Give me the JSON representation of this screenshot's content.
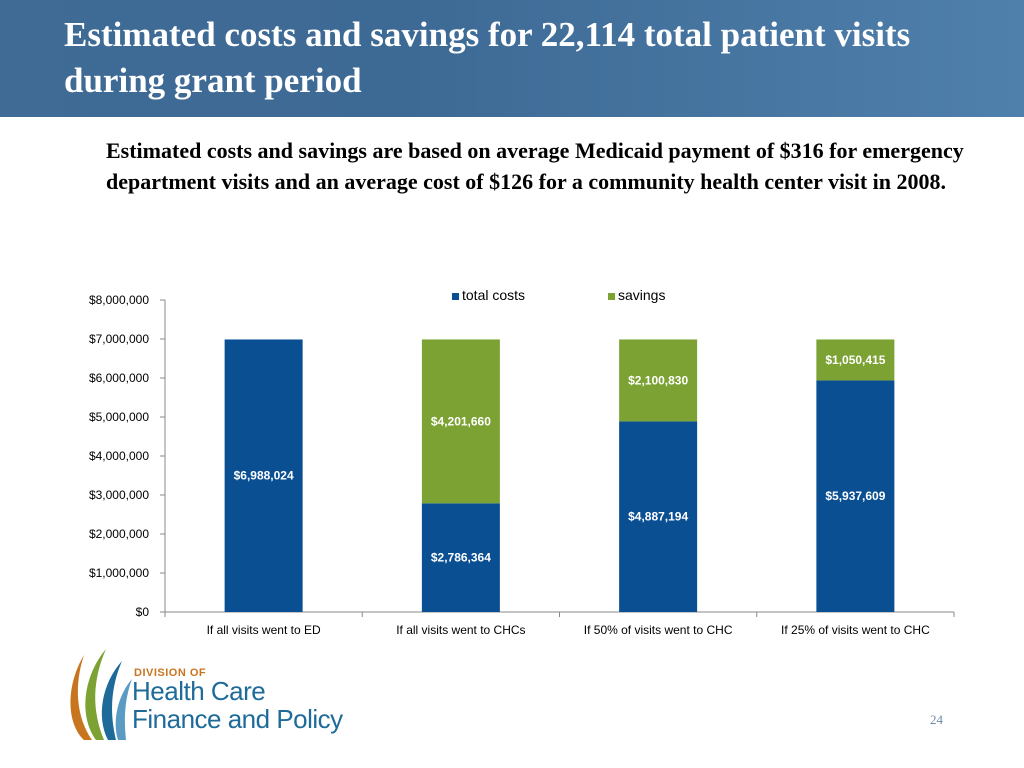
{
  "slide": {
    "title": "Estimated costs and savings for 22,114 total patient visits during grant period",
    "subtitle": "Estimated costs and savings are based on average Medicaid payment of $316 for emergency department visits and an average cost of $126 for a community health center visit in 2008.",
    "page_number": "24"
  },
  "logo": {
    "line_small": "DIVISION OF",
    "line1": "Health Care",
    "line2": "Finance and Policy"
  },
  "colors": {
    "header": "#3f6b95",
    "total_costs": "#0b4f93",
    "savings": "#7ba232",
    "logo_blue": "#1e6b9a",
    "logo_orange": "#c8751f",
    "logo_green": "#7ba232"
  },
  "chart_data": {
    "type": "bar",
    "stacked": true,
    "categories": [
      "If all visits went to ED",
      "If all visits went to CHCs",
      "If 50% of visits went to CHC",
      "If 25% of visits went to CHC"
    ],
    "series": [
      {
        "name": "total costs",
        "values": [
          6988024,
          2786364,
          4887194,
          5937609
        ],
        "labels": [
          "$6,988,024",
          "$2,786,364",
          "$4,887,194",
          "$5,937,609"
        ]
      },
      {
        "name": "savings",
        "values": [
          0,
          4201660,
          2100830,
          1050415
        ],
        "labels": [
          "",
          "$4,201,660",
          "$2,100,830",
          "$1,050,415"
        ]
      }
    ],
    "ylim": [
      0,
      8000000
    ],
    "yticks": [
      0,
      1000000,
      2000000,
      3000000,
      4000000,
      5000000,
      6000000,
      7000000,
      8000000
    ],
    "ytick_labels": [
      "$0",
      "$1,000,000",
      "$2,000,000",
      "$3,000,000",
      "$4,000,000",
      "$5,000,000",
      "$6,000,000",
      "$7,000,000",
      "$8,000,000"
    ],
    "legend_position": "top",
    "grid": false,
    "title": "",
    "xlabel": "",
    "ylabel": ""
  }
}
